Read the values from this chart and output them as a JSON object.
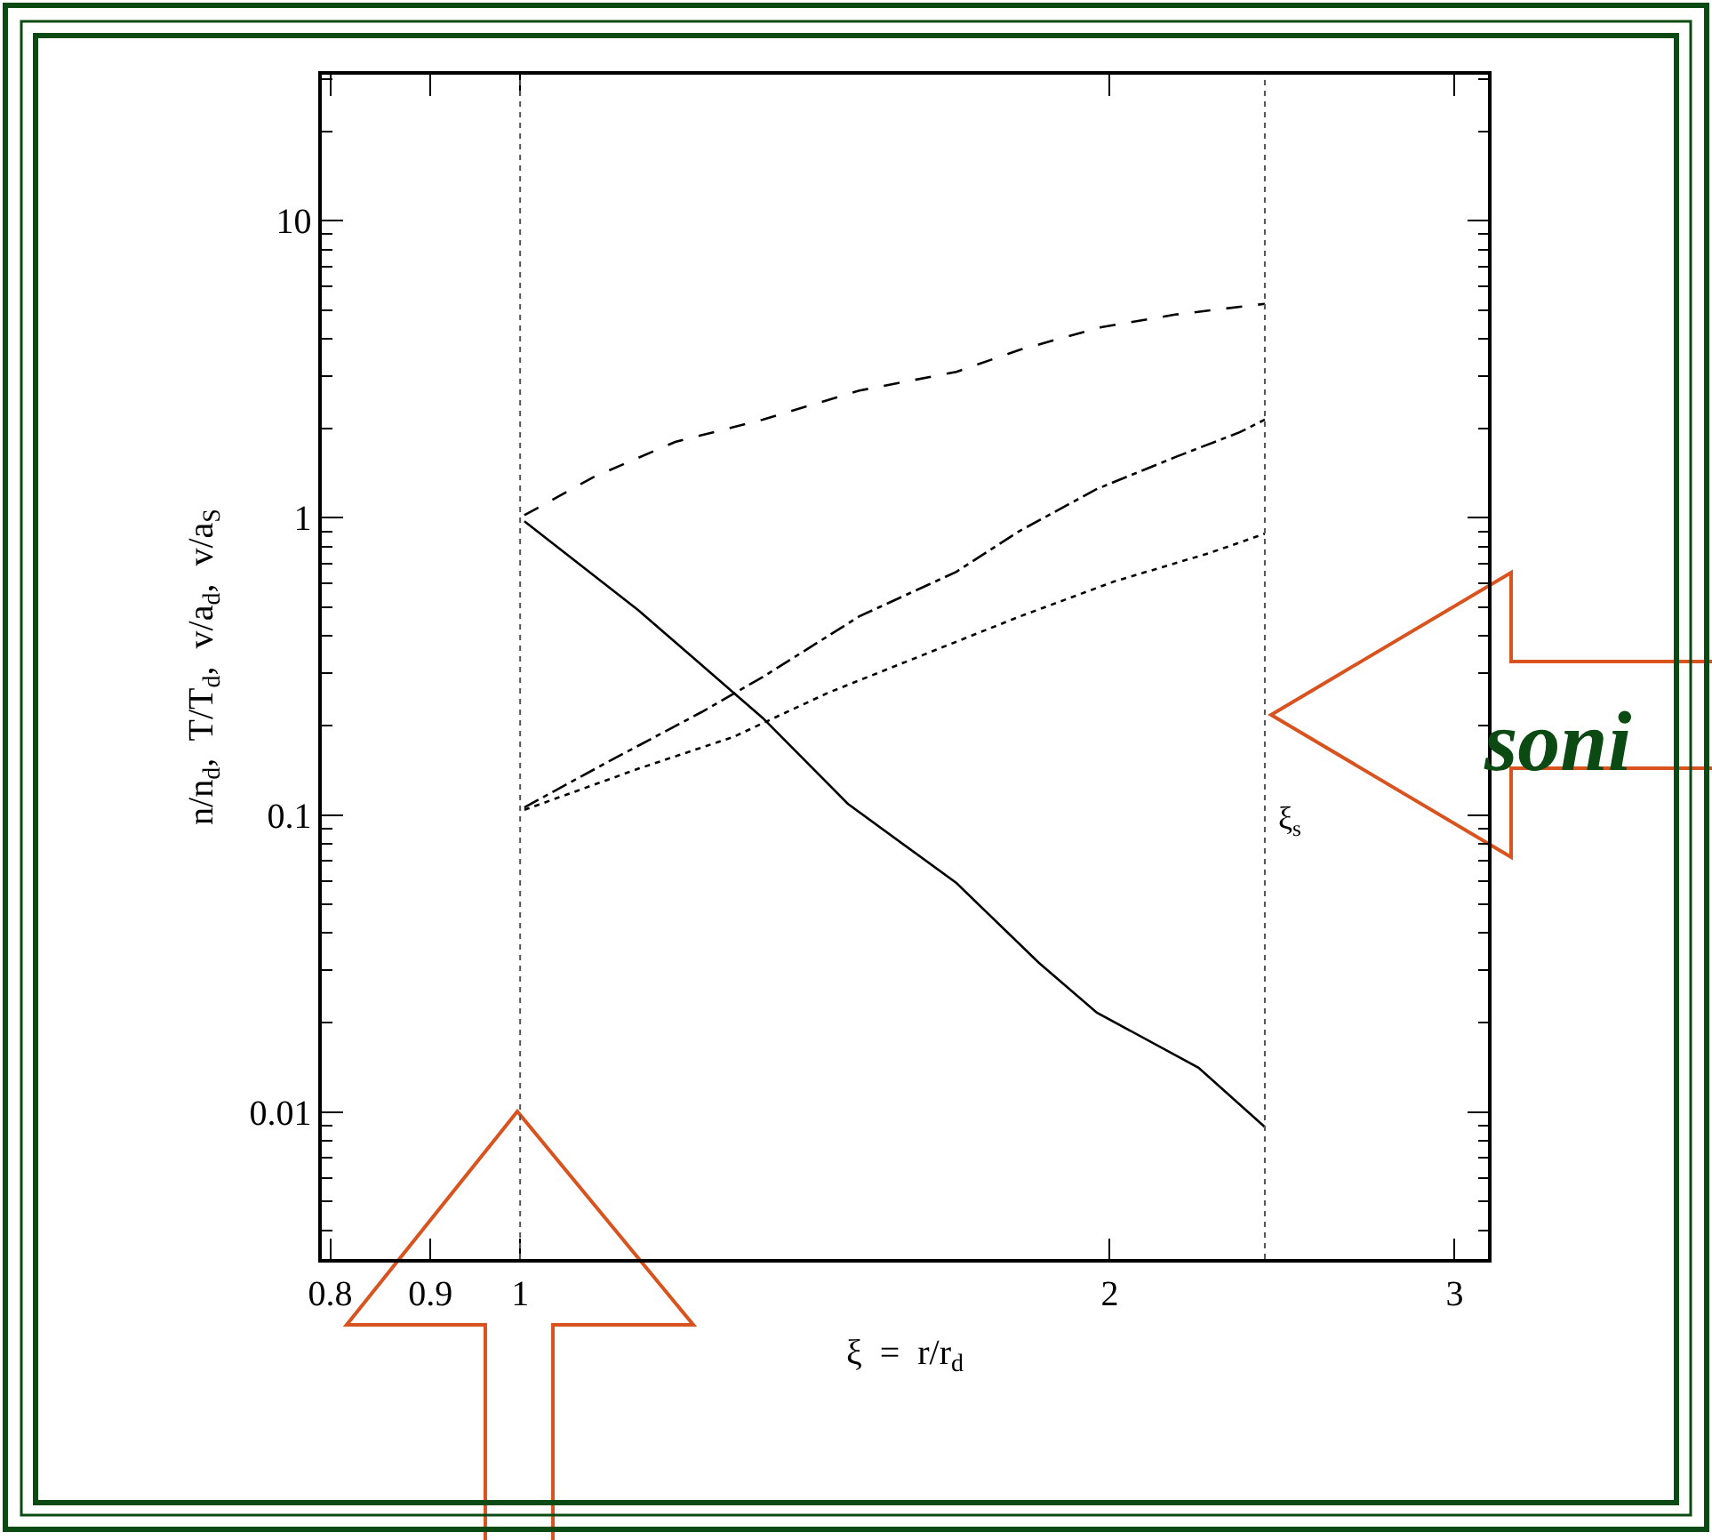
{
  "chart_data": {
    "type": "line",
    "xlabel": "ξ  =  r/r$_{d}$",
    "ylabel": "n/n$_{d}$,  T/T$_{d}$,  v/a$_{d}$,  v/a$_{S}$",
    "log": "xy",
    "grid": false,
    "legend": false,
    "marker": "none",
    "xlim": [
      0.792,
      3.12
    ],
    "xticks": [
      0.8,
      0.9,
      1,
      2,
      3
    ],
    "ylim": [
      0.0032,
      31
    ],
    "yticks": [
      0.01,
      0.1,
      1,
      10
    ],
    "series": [
      {
        "color": "#000000",
        "line_style": "dashed",
        "x": [
          1.005,
          1.09,
          1.2,
          1.33,
          1.49,
          1.67,
          1.8,
          1.98,
          2.16,
          2.4
        ],
        "values": [
          1.02,
          1.37,
          1.8,
          2.14,
          2.68,
          3.1,
          3.68,
          4.38,
          4.83,
          5.25
        ]
      },
      {
        "color": "#000000",
        "line_style": "dashdot",
        "x": [
          1.005,
          1.107,
          1.238,
          1.33,
          1.49,
          1.67,
          1.8,
          1.97,
          2.16,
          2.33,
          2.4
        ],
        "values": [
          0.106,
          0.15,
          0.222,
          0.291,
          0.466,
          0.658,
          0.905,
          1.25,
          1.6,
          1.94,
          2.14
        ]
      },
      {
        "color": "#000000",
        "line_style": "dotted",
        "x": [
          1.005,
          1.149,
          1.285,
          1.437,
          1.607,
          1.8,
          2.01,
          2.25,
          2.4
        ],
        "values": [
          0.104,
          0.143,
          0.183,
          0.258,
          0.346,
          0.466,
          0.61,
          0.762,
          0.884
        ]
      },
      {
        "color": "#000000",
        "line_style": "solid",
        "x": [
          1.005,
          1.149,
          1.285,
          1.33,
          1.47,
          1.67,
          1.84,
          1.97,
          2.22,
          2.4
        ],
        "values": [
          0.974,
          0.489,
          0.258,
          0.212,
          0.109,
          0.059,
          0.0318,
          0.0216,
          0.0141,
          0.0089
        ]
      }
    ],
    "ref_lines": [
      {
        "axis": "x",
        "value": 1,
        "label": null,
        "line_style": "dotted",
        "color": "#555555"
      },
      {
        "axis": "x",
        "value": 2.4,
        "label": "ξ$_{s}$",
        "line_style": "dotted",
        "color": "#555555"
      }
    ],
    "annotations": [
      "soni"
    ]
  }
}
